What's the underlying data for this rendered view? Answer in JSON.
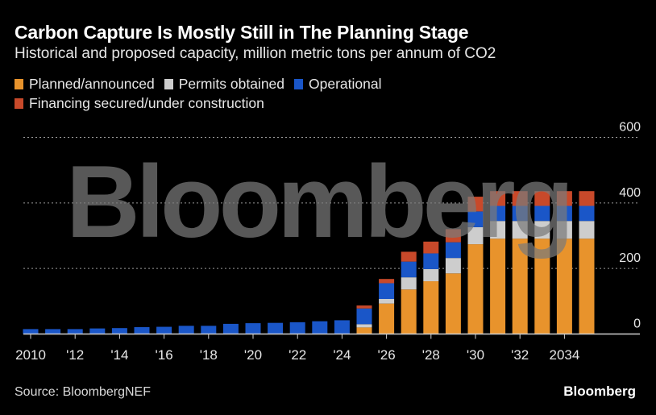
{
  "chart_data": {
    "type": "bar",
    "stacked": true,
    "title": "Carbon Capture Is Mostly Still in The Planning Stage",
    "subtitle": "Historical and proposed capacity, million metric tons per annum of CO2",
    "xlabel": "",
    "ylabel": "",
    "ylim": [
      0,
      600
    ],
    "yticks": [
      0,
      200,
      400,
      600
    ],
    "grid": true,
    "y_axis_side": "right",
    "legend_placement": "top-left",
    "categories": [
      "2010",
      "2011",
      "2012",
      "2013",
      "2014",
      "2015",
      "2016",
      "2017",
      "2018",
      "2019",
      "2020",
      "2021",
      "2022",
      "2023",
      "2024",
      "2025",
      "2026",
      "2027",
      "2028",
      "2029",
      "2030",
      "2031",
      "2032",
      "2033",
      "2034",
      "2035"
    ],
    "xtick_labels": [
      {
        "category": "2010",
        "label": "2010"
      },
      {
        "category": "2012",
        "label": "'12"
      },
      {
        "category": "2014",
        "label": "'14"
      },
      {
        "category": "2016",
        "label": "'16"
      },
      {
        "category": "2018",
        "label": "'18"
      },
      {
        "category": "2020",
        "label": "'20"
      },
      {
        "category": "2022",
        "label": "'22"
      },
      {
        "category": "2024",
        "label": "'24"
      },
      {
        "category": "2026",
        "label": "'26"
      },
      {
        "category": "2028",
        "label": "'28"
      },
      {
        "category": "2030",
        "label": "'30"
      },
      {
        "category": "2032",
        "label": "'32"
      },
      {
        "category": "2034",
        "label": "2034"
      }
    ],
    "series": [
      {
        "name": "Planned/announced",
        "color": "#E8932C",
        "values": [
          0,
          0,
          0,
          0,
          0,
          0,
          0,
          0,
          0,
          0,
          0,
          0,
          0,
          0,
          0,
          20,
          93,
          136,
          161,
          185,
          274,
          291,
          291,
          291,
          291,
          291
        ]
      },
      {
        "name": "Permits obtained",
        "color": "#CDCDCD",
        "values": [
          0,
          0,
          0,
          0,
          0,
          0,
          0,
          0,
          0,
          0,
          0,
          0,
          0,
          0,
          0,
          10,
          14,
          37,
          37,
          47,
          52,
          54,
          54,
          54,
          54,
          54
        ]
      },
      {
        "name": "Operational",
        "color": "#1A56C8",
        "values": [
          15,
          15,
          15,
          17,
          18,
          21,
          22,
          25,
          25,
          31,
          33,
          34,
          36,
          39,
          42,
          48,
          48,
          48,
          48,
          48,
          48,
          46,
          46,
          46,
          46,
          46
        ]
      },
      {
        "name": "Financing secured/under construction",
        "color": "#C8492A",
        "values": [
          0,
          0,
          0,
          0,
          0,
          0,
          0,
          0,
          0,
          0,
          0,
          0,
          0,
          0,
          0,
          9,
          13,
          30,
          36,
          40,
          45,
          45,
          45,
          45,
          45,
          45
        ]
      }
    ],
    "legend_order": [
      [
        "Planned/announced",
        "Permits obtained",
        "Operational"
      ],
      [
        "Financing secured/under construction"
      ]
    ],
    "watermark": "Bloomberg"
  },
  "footer": {
    "source": "Source: BloombergNEF",
    "brand": "Bloomberg"
  }
}
